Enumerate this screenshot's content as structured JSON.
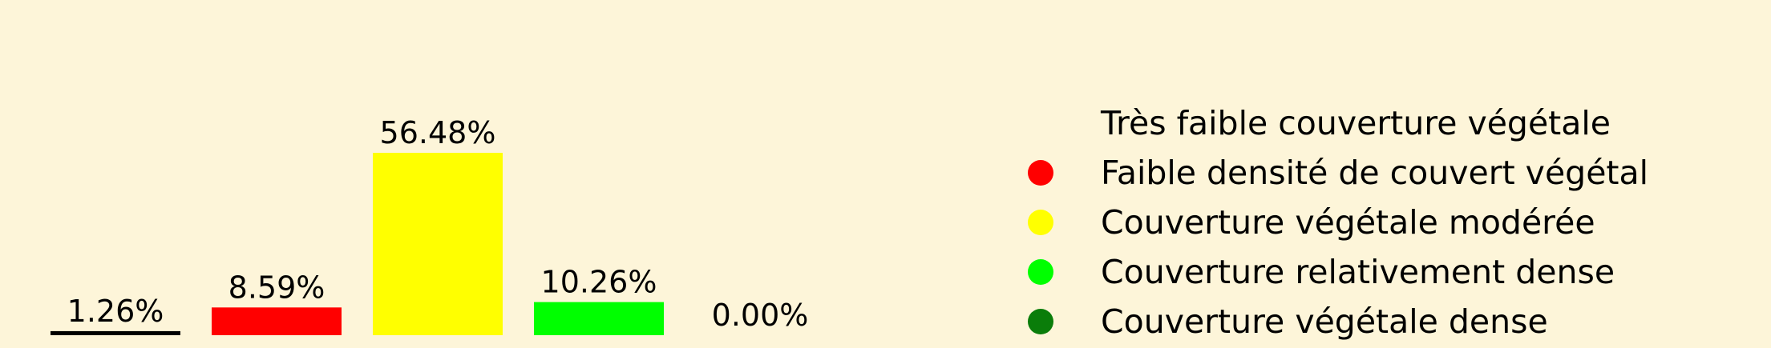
{
  "chart_data": {
    "type": "bar",
    "categories": [
      "Très faible couverture végétale",
      "Faible densité de couvert végétal",
      "Couverture végétale modérée",
      "Couverture relativement dense",
      "Couverture végétale dense"
    ],
    "values": [
      1.26,
      8.59,
      56.48,
      10.26,
      0.0
    ],
    "value_labels": [
      "1.26%",
      "8.59%",
      "56.48%",
      "10.26%",
      "0.00%"
    ],
    "colors": [
      "#000000",
      "#ff0000",
      "#ffff00",
      "#00ff00",
      "#0a7d0a"
    ],
    "legend_marker_colors": [
      "#fdf5d9",
      "#ff0000",
      "#ffff00",
      "#00ff00",
      "#0a7d0a"
    ],
    "ylim": [
      0,
      56.48
    ],
    "legend_placement": "right",
    "grid": false,
    "xlabel": "",
    "ylabel": "",
    "title": ""
  }
}
